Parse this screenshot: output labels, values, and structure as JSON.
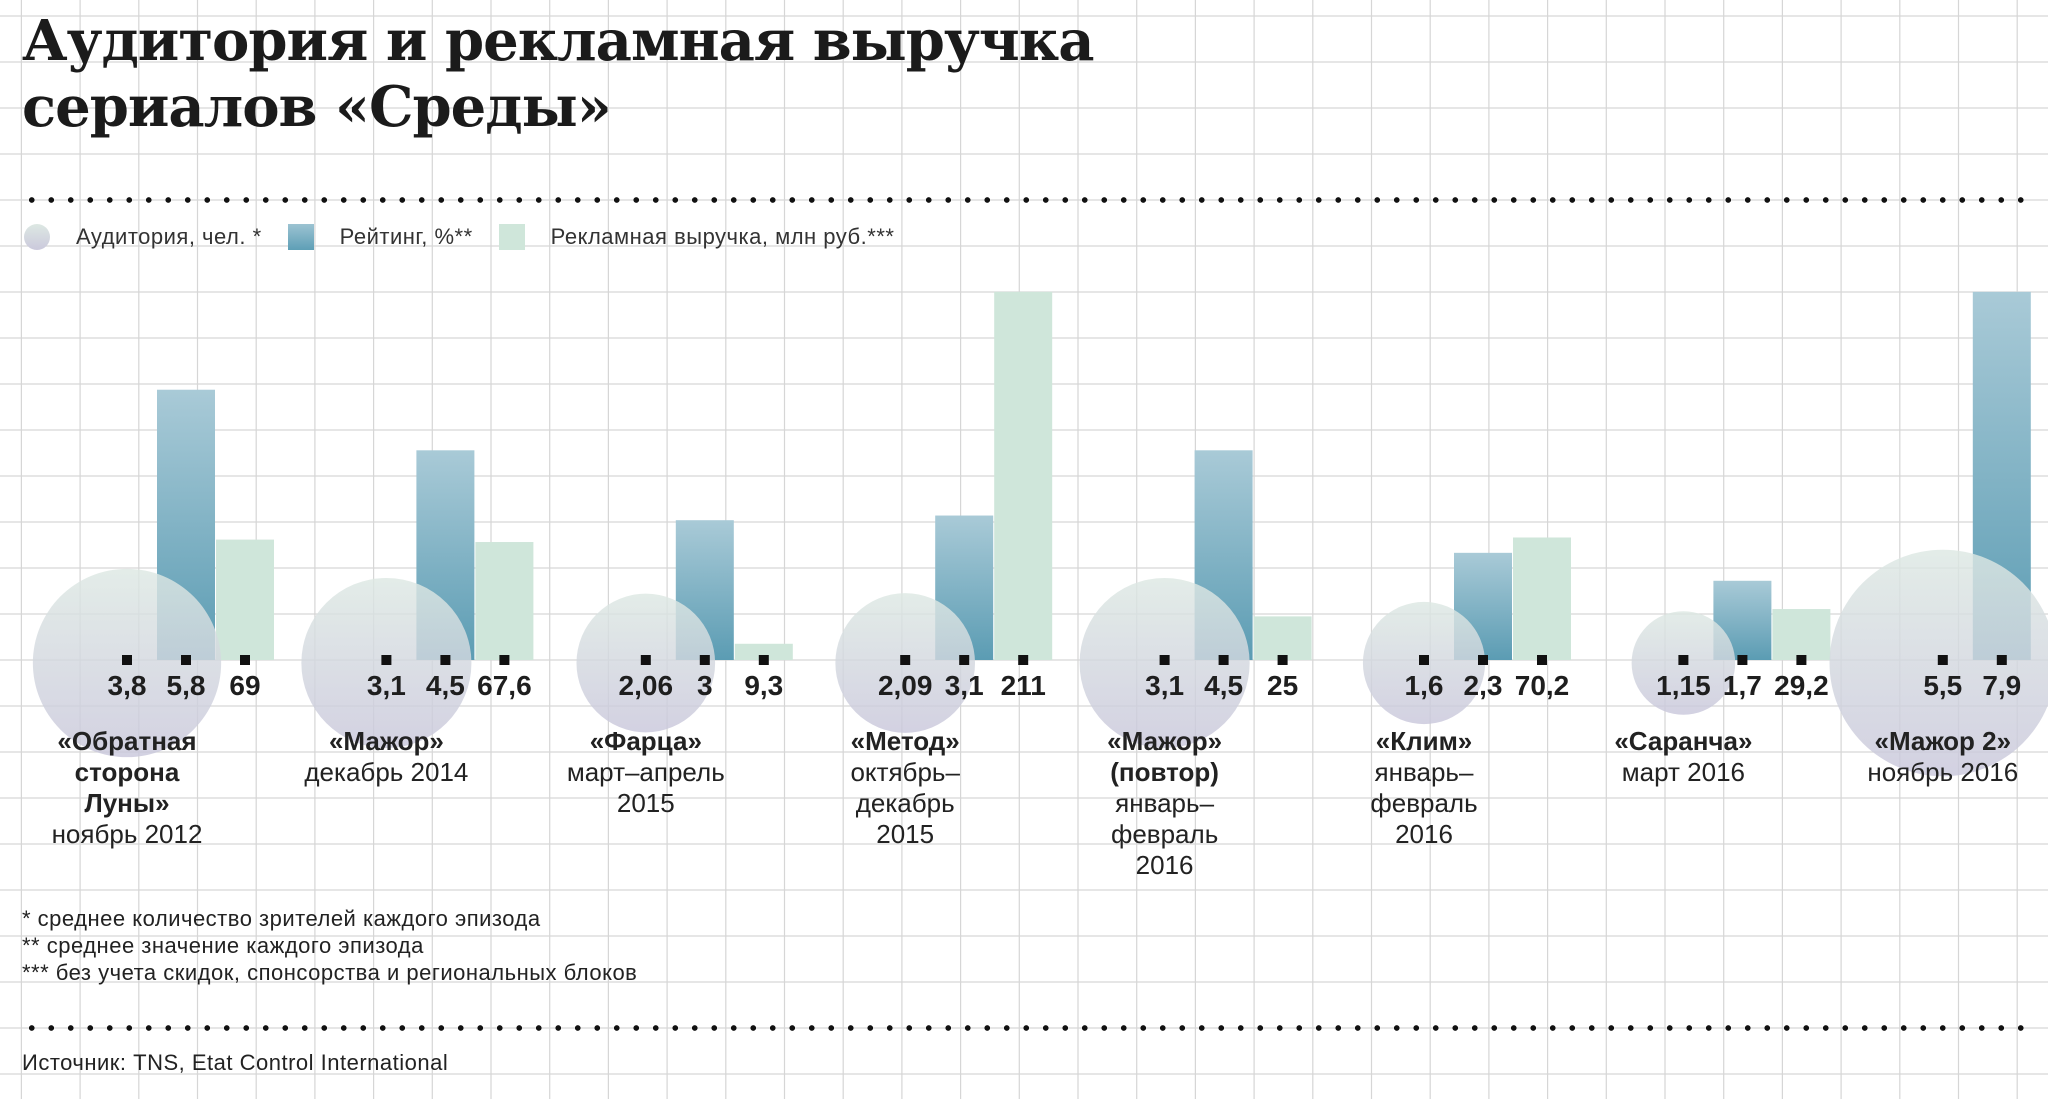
{
  "title_lines": [
    "Аудитория и рекламная выручка",
    "сериалов «Среды»"
  ],
  "legend": [
    {
      "label": "Аудитория, чел. *",
      "shape": "circle"
    },
    {
      "label": "Рейтинг, %**",
      "shape": "square"
    },
    {
      "label": "Рекламная выручка, млн руб.***",
      "shape": "square"
    }
  ],
  "colors": {
    "audience_top": "#dde8e3",
    "audience_bottom": "#c9c7db",
    "rating_top": "#a9cad7",
    "rating_bottom": "#5b9cb3",
    "revenue": "#cfe6da",
    "grid": "#d6d6d6"
  },
  "chart_data": {
    "type": "bar",
    "grid": true,
    "legend_position": "top-left",
    "categories": [
      {
        "name": [
          "«Обратная",
          "сторона",
          "Луны»"
        ],
        "period": [
          "ноябрь 2012"
        ]
      },
      {
        "name": [
          "«Мажор»"
        ],
        "period": [
          "декабрь 2014"
        ]
      },
      {
        "name": [
          "«Фарца»"
        ],
        "period": [
          "март–апрель",
          "2015"
        ]
      },
      {
        "name": [
          "«Метод»"
        ],
        "period": [
          "октябрь–",
          "декабрь",
          "2015"
        ]
      },
      {
        "name": [
          "«Мажор»",
          "(повтор)"
        ],
        "period": [
          "январь–",
          "февраль",
          "2016"
        ]
      },
      {
        "name": [
          "«Клим»"
        ],
        "period": [
          "январь–",
          "февраль",
          "2016"
        ]
      },
      {
        "name": [
          "«Саранча»"
        ],
        "period": [
          "март 2016"
        ]
      },
      {
        "name": [
          "«Мажор 2»"
        ],
        "period": [
          "ноябрь 2016"
        ]
      }
    ],
    "series": [
      {
        "name": "Аудитория, чел. *",
        "mark": "bubble",
        "values": [
          3.8,
          3.1,
          2.06,
          2.09,
          3.1,
          1.6,
          1.15,
          5.5
        ],
        "labels": [
          "3,8",
          "3,1",
          "2,06",
          "2,09",
          "3,1",
          "1,6",
          "1,15",
          "5,5"
        ]
      },
      {
        "name": "Рейтинг, %**",
        "mark": "bar",
        "values": [
          5.8,
          4.5,
          3,
          3.1,
          4.5,
          2.3,
          1.7,
          7.9
        ],
        "labels": [
          "5,8",
          "4,5",
          "3",
          "3,1",
          "4,5",
          "2,3",
          "1,7",
          "7,9"
        ]
      },
      {
        "name": "Рекламная выручка, млн руб.***",
        "mark": "bar",
        "values": [
          69,
          67.6,
          9.3,
          211,
          25,
          70.2,
          29.2,
          null
        ],
        "labels": [
          "69",
          "67,6",
          "9,3",
          "211",
          "25",
          "70,2",
          "29,2",
          null
        ]
      }
    ]
  },
  "footnotes": [
    "* среднее количество зрителей каждого эпизода",
    "** среднее значение каждого эпизода",
    "*** без учета скидок, спонсорства и региональных блоков"
  ],
  "source": "Источник: TNS, Etat Control International"
}
